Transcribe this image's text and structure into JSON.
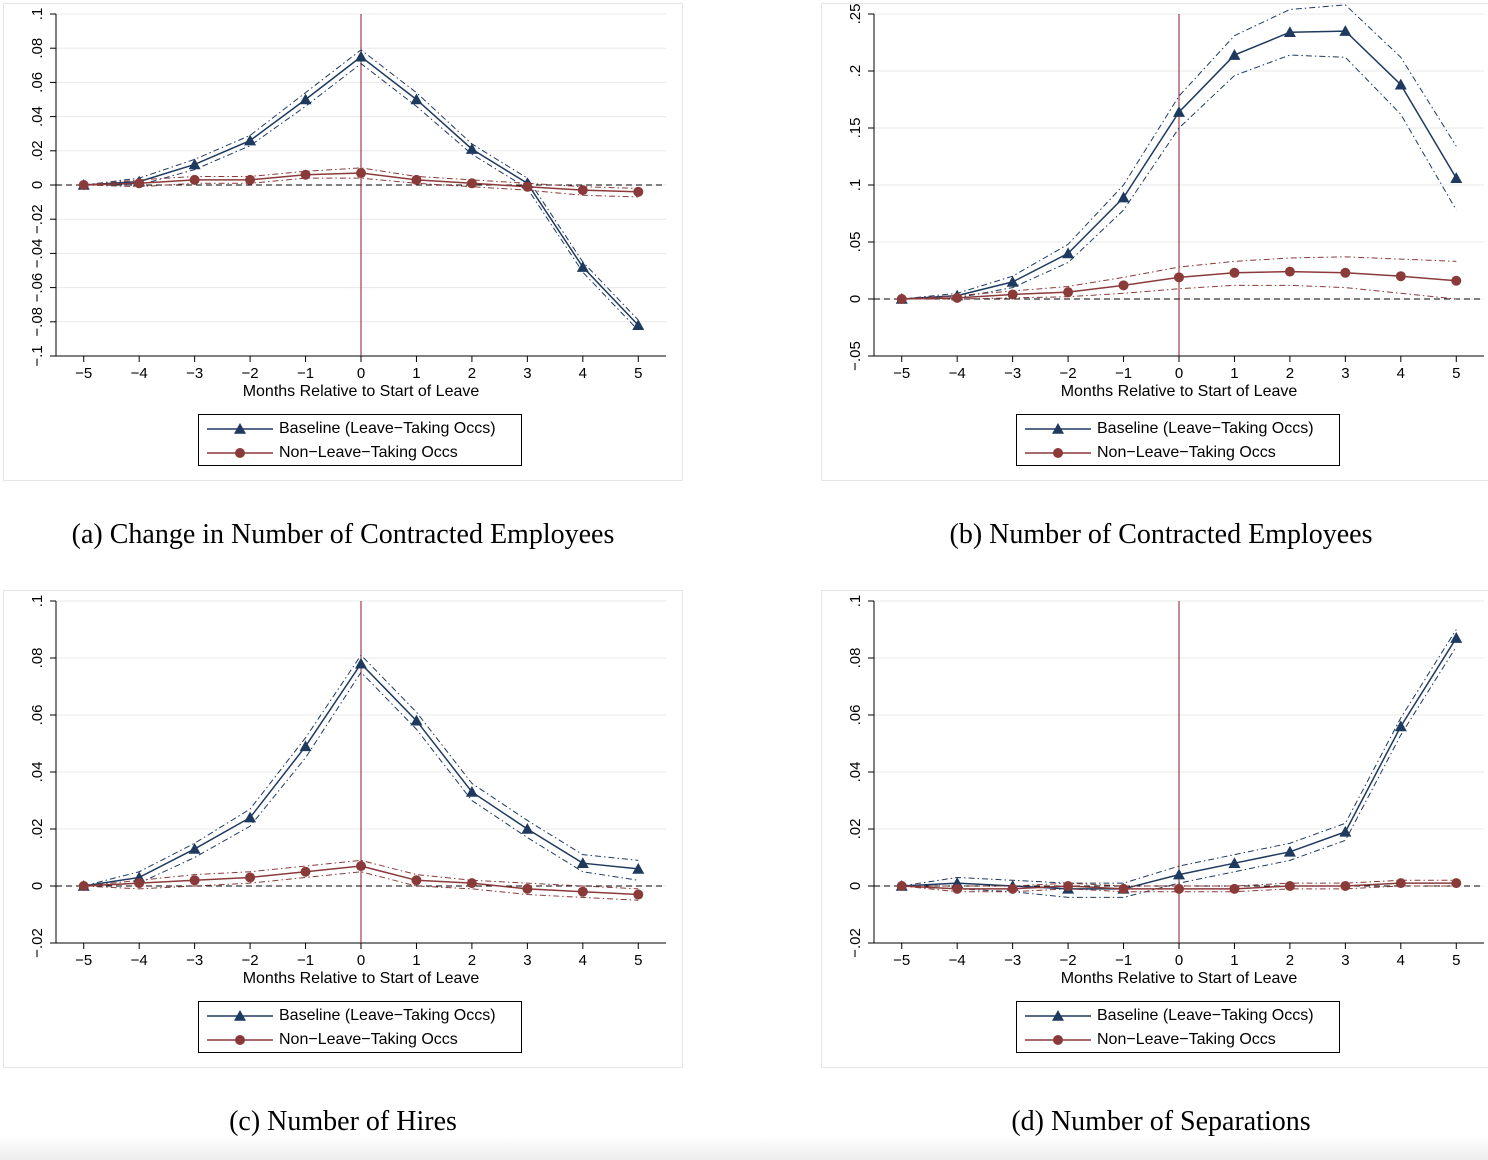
{
  "colors": {
    "baseline": "#1f3a5f",
    "nonleave": "#8b3a3a",
    "zero_line": "#000000",
    "event_line": "#8b1a2b",
    "grid": "#e8e8e8"
  },
  "legend": {
    "baseline_label": "Baseline (Leave−Taking Occs)",
    "nonleave_label": "Non−Leave−Taking Occs"
  },
  "chart_data": [
    {
      "type": "line",
      "caption": "(a) Change in Number of Contracted Employees",
      "xlabel": "Months Relative to Start of Leave",
      "x": [
        -5,
        -4,
        -3,
        -2,
        -1,
        0,
        1,
        2,
        3,
        4,
        5
      ],
      "x_ticklabels": [
        "−5",
        "−4",
        "−3",
        "−2",
        "−1",
        "0",
        "1",
        "2",
        "3",
        "4",
        "5"
      ],
      "ylim": [
        -0.1,
        0.1
      ],
      "y_ticks": [
        -0.1,
        -0.08,
        -0.06,
        -0.04,
        -0.02,
        0,
        0.02,
        0.04,
        0.06,
        0.08,
        0.1
      ],
      "y_ticklabels": [
        "−.1",
        "−.08",
        "−.06",
        "−.04",
        "−.02",
        "0",
        ".02",
        ".04",
        ".06",
        ".08",
        ".1"
      ],
      "series": [
        {
          "name": "Baseline (Leave−Taking Occs)",
          "values": [
            0,
            0.002,
            0.012,
            0.026,
            0.05,
            0.075,
            0.05,
            0.021,
            0.001,
            -0.048,
            -0.082
          ],
          "lower": [
            0,
            0,
            0.009,
            0.023,
            0.046,
            0.071,
            0.046,
            0.018,
            -0.002,
            -0.051,
            -0.085
          ],
          "upper": [
            0,
            0.004,
            0.015,
            0.029,
            0.054,
            0.079,
            0.054,
            0.024,
            0.004,
            -0.045,
            -0.079
          ]
        },
        {
          "name": "Non−Leave−Taking Occs",
          "values": [
            0,
            0.001,
            0.003,
            0.003,
            0.006,
            0.007,
            0.003,
            0.001,
            -0.001,
            -0.003,
            -0.004
          ],
          "lower": [
            0,
            -0.001,
            0.001,
            0.001,
            0.004,
            0.004,
            0.001,
            -0.001,
            -0.003,
            -0.006,
            -0.007
          ],
          "upper": [
            0,
            0.003,
            0.005,
            0.005,
            0.008,
            0.01,
            0.005,
            0.003,
            0.001,
            -0.001,
            -0.002
          ]
        }
      ]
    },
    {
      "type": "line",
      "caption": "(b) Number of Contracted Employees",
      "xlabel": "Months Relative to Start of Leave",
      "x": [
        -5,
        -4,
        -3,
        -2,
        -1,
        0,
        1,
        2,
        3,
        4,
        5
      ],
      "x_ticklabels": [
        "−5",
        "−4",
        "−3",
        "−2",
        "−1",
        "0",
        "1",
        "2",
        "3",
        "4",
        "5"
      ],
      "ylim": [
        -0.05,
        0.25
      ],
      "y_ticks": [
        -0.05,
        0,
        0.05,
        0.1,
        0.15,
        0.2,
        0.25
      ],
      "y_ticklabels": [
        "−.05",
        "0",
        ".05",
        ".1",
        ".15",
        ".2",
        ".25"
      ],
      "series": [
        {
          "name": "Baseline (Leave−Taking Occs)",
          "values": [
            0,
            0.003,
            0.015,
            0.04,
            0.089,
            0.164,
            0.214,
            0.234,
            0.235,
            0.188,
            0.106
          ],
          "lower": [
            0,
            0.001,
            0.01,
            0.032,
            0.078,
            0.15,
            0.196,
            0.214,
            0.212,
            0.162,
            0.078
          ],
          "upper": [
            0,
            0.005,
            0.02,
            0.048,
            0.1,
            0.178,
            0.231,
            0.254,
            0.258,
            0.212,
            0.134
          ]
        },
        {
          "name": "Non−Leave−Taking Occs",
          "values": [
            0,
            0.001,
            0.004,
            0.006,
            0.012,
            0.019,
            0.023,
            0.024,
            0.023,
            0.02,
            0.016
          ],
          "lower": [
            0,
            0,
            0.001,
            0.002,
            0.005,
            0.009,
            0.012,
            0.012,
            0.01,
            0.005,
            0
          ],
          "upper": [
            0,
            0.003,
            0.007,
            0.011,
            0.019,
            0.028,
            0.033,
            0.036,
            0.037,
            0.035,
            0.033
          ]
        }
      ]
    },
    {
      "type": "line",
      "caption": "(c) Number of Hires",
      "xlabel": "Months Relative to Start of Leave",
      "x": [
        -5,
        -4,
        -3,
        -2,
        -1,
        0,
        1,
        2,
        3,
        4,
        5
      ],
      "x_ticklabels": [
        "−5",
        "−4",
        "−3",
        "−2",
        "−1",
        "0",
        "1",
        "2",
        "3",
        "4",
        "5"
      ],
      "ylim": [
        -0.02,
        0.1
      ],
      "y_ticks": [
        -0.02,
        0,
        0.02,
        0.04,
        0.06,
        0.08,
        0.1
      ],
      "y_ticklabels": [
        "−.02",
        "0",
        ".02",
        ".04",
        ".06",
        ".08",
        ".1"
      ],
      "series": [
        {
          "name": "Baseline (Leave−Taking Occs)",
          "values": [
            0,
            0.003,
            0.013,
            0.024,
            0.049,
            0.078,
            0.058,
            0.033,
            0.02,
            0.008,
            0.006
          ],
          "lower": [
            0,
            0.001,
            0.01,
            0.021,
            0.045,
            0.075,
            0.055,
            0.03,
            0.017,
            0.005,
            0.002
          ],
          "upper": [
            0,
            0.005,
            0.015,
            0.027,
            0.052,
            0.081,
            0.061,
            0.036,
            0.023,
            0.011,
            0.009
          ]
        },
        {
          "name": "Non−Leave−Taking Occs",
          "values": [
            0,
            0.001,
            0.002,
            0.003,
            0.005,
            0.007,
            0.002,
            0.001,
            -0.001,
            -0.002,
            -0.003
          ],
          "lower": [
            0,
            -0.001,
            0,
            0.001,
            0.003,
            0.005,
            0,
            -0.001,
            -0.003,
            -0.004,
            -0.005
          ],
          "upper": [
            0,
            0.002,
            0.004,
            0.005,
            0.007,
            0.009,
            0.004,
            0.002,
            0.001,
            0,
            -0.001
          ]
        }
      ]
    },
    {
      "type": "line",
      "caption": "(d) Number of Separations",
      "xlabel": "Months Relative to Start of Leave",
      "x": [
        -5,
        -4,
        -3,
        -2,
        -1,
        0,
        1,
        2,
        3,
        4,
        5
      ],
      "x_ticklabels": [
        "−5",
        "−4",
        "−3",
        "−2",
        "−1",
        "0",
        "1",
        "2",
        "3",
        "4",
        "5"
      ],
      "ylim": [
        -0.02,
        0.1
      ],
      "y_ticks": [
        -0.02,
        0,
        0.02,
        0.04,
        0.06,
        0.08,
        0.1
      ],
      "y_ticklabels": [
        "−.02",
        "0",
        ".02",
        ".04",
        ".06",
        ".08",
        ".1"
      ],
      "series": [
        {
          "name": "Baseline (Leave−Taking Occs)",
          "values": [
            0,
            0.001,
            0,
            -0.001,
            -0.001,
            0.004,
            0.008,
            0.012,
            0.019,
            0.056,
            0.087
          ],
          "lower": [
            0,
            -0.001,
            -0.002,
            -0.004,
            -0.004,
            0.001,
            0.005,
            0.009,
            0.016,
            0.053,
            0.084
          ],
          "upper": [
            0,
            0.003,
            0.002,
            0.001,
            0.001,
            0.007,
            0.011,
            0.015,
            0.022,
            0.059,
            0.09
          ]
        },
        {
          "name": "Non−Leave−Taking Occs",
          "values": [
            0,
            -0.001,
            -0.001,
            0,
            -0.001,
            -0.001,
            -0.001,
            0,
            0,
            0.001,
            0.001
          ],
          "lower": [
            0,
            -0.002,
            -0.002,
            -0.001,
            -0.002,
            -0.002,
            -0.002,
            -0.001,
            -0.001,
            0,
            0
          ],
          "upper": [
            0,
            0,
            0,
            0.001,
            0,
            0,
            0,
            0.001,
            0.001,
            0.002,
            0.002
          ]
        }
      ]
    }
  ]
}
